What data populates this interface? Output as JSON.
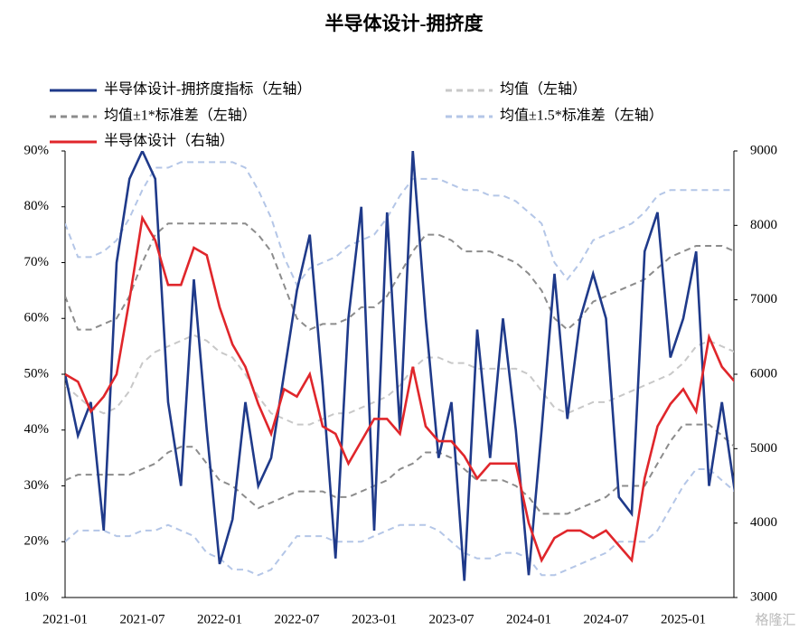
{
  "chart_data": {
    "type": "line",
    "title": "半导体设计-拥挤度",
    "x": [
      "2021-01",
      "2021-02",
      "2021-03",
      "2021-04",
      "2021-05",
      "2021-06",
      "2021-07",
      "2021-08",
      "2021-09",
      "2021-10",
      "2021-11",
      "2021-12",
      "2022-01",
      "2022-02",
      "2022-03",
      "2022-04",
      "2022-05",
      "2022-06",
      "2022-07",
      "2022-08",
      "2022-09",
      "2022-10",
      "2022-11",
      "2022-12",
      "2023-01",
      "2023-02",
      "2023-03",
      "2023-04",
      "2023-05",
      "2023-06",
      "2023-07",
      "2023-08",
      "2023-09",
      "2023-10",
      "2023-11",
      "2023-12",
      "2024-01",
      "2024-02",
      "2024-03",
      "2024-04",
      "2024-05",
      "2024-06",
      "2024-07",
      "2024-08",
      "2024-09",
      "2024-10",
      "2024-11",
      "2024-12",
      "2025-01",
      "2025-02",
      "2025-03",
      "2025-04",
      "2025-05"
    ],
    "ylim": [
      10,
      90
    ],
    "yticks": [
      {
        "value": 10,
        "label": "10%"
      },
      {
        "value": 20,
        "label": "20%"
      },
      {
        "value": 30,
        "label": "30%"
      },
      {
        "value": 40,
        "label": "40%"
      },
      {
        "value": 50,
        "label": "50%"
      },
      {
        "value": 60,
        "label": "60%"
      },
      {
        "value": 70,
        "label": "70%"
      },
      {
        "value": 80,
        "label": "80%"
      },
      {
        "value": 90,
        "label": "90%"
      }
    ],
    "y2lim": [
      3000,
      9000
    ],
    "y2ticks": [
      3000,
      4000,
      5000,
      6000,
      7000,
      8000,
      9000
    ],
    "series": [
      {
        "name": "半导体设计-拥挤度指标（左轴）",
        "color": "#1f3a8a",
        "dashed": false,
        "values": [
          50,
          39,
          45,
          22,
          70,
          85,
          90,
          85,
          45,
          30,
          67,
          40,
          16,
          24,
          45,
          30,
          35,
          50,
          65,
          75,
          48,
          17,
          60,
          80,
          22,
          79,
          40,
          90,
          60,
          35,
          45,
          13,
          58,
          35,
          60,
          40,
          14,
          40,
          68,
          42,
          60,
          68,
          60,
          28,
          25,
          72,
          79,
          53,
          60,
          72,
          30,
          45,
          29
        ]
      },
      {
        "name": "均值（左轴）",
        "color": "#c8c8c8",
        "dashed": true,
        "values": [
          48,
          46,
          44,
          43,
          44,
          47,
          52,
          54,
          55,
          56,
          57,
          56,
          54,
          53,
          50,
          46,
          43,
          42,
          41,
          41,
          42,
          43,
          43,
          44,
          45,
          46,
          48,
          51,
          53,
          53,
          52,
          52,
          51,
          51,
          51,
          51,
          50,
          47,
          44,
          43,
          44,
          45,
          45,
          46,
          47,
          48,
          49,
          50,
          52,
          55,
          56,
          55,
          54
        ]
      },
      {
        "name": "均值±1*标准差（左轴）",
        "color": "#8c8c8c",
        "dashed": true,
        "values": [
          64,
          58,
          58,
          59,
          60,
          64,
          70,
          75,
          77,
          77,
          77,
          77,
          77,
          77,
          77,
          75,
          72,
          66,
          60,
          58,
          59,
          59,
          60,
          62,
          62,
          64,
          68,
          72,
          75,
          75,
          74,
          72,
          72,
          72,
          71,
          70,
          68,
          65,
          60,
          58,
          60,
          63,
          64,
          65,
          66,
          67,
          69,
          71,
          72,
          73,
          73,
          73,
          72
        ],
        "lower": [
          31,
          32,
          32,
          32,
          32,
          32,
          33,
          34,
          36,
          37,
          37,
          34,
          31,
          30,
          28,
          26,
          27,
          28,
          29,
          29,
          29,
          28,
          28,
          29,
          30,
          31,
          33,
          34,
          36,
          36,
          35,
          33,
          31,
          31,
          31,
          30,
          28,
          25,
          25,
          25,
          26,
          27,
          28,
          30,
          30,
          30,
          34,
          38,
          41,
          41,
          41,
          39,
          37
        ]
      },
      {
        "name": "均值±1.5*标准差（左轴）",
        "color": "#b4c6e7",
        "dashed": true,
        "values": [
          77,
          71,
          71,
          72,
          74,
          78,
          83,
          87,
          87,
          88,
          88,
          88,
          88,
          88,
          87,
          83,
          78,
          71,
          66,
          69,
          70,
          71,
          73,
          74,
          75,
          78,
          82,
          85,
          85,
          85,
          84,
          83,
          83,
          82,
          82,
          81,
          79,
          77,
          70,
          67,
          70,
          74,
          75,
          76,
          77,
          79,
          82,
          83,
          83,
          83,
          83,
          83,
          83
        ],
        "lower": [
          20,
          22,
          22,
          22,
          21,
          21,
          22,
          22,
          23,
          22,
          21,
          18,
          17,
          15,
          15,
          14,
          15,
          18,
          21,
          21,
          21,
          20,
          20,
          20,
          21,
          22,
          23,
          23,
          23,
          22,
          20,
          18,
          17,
          17,
          18,
          18,
          17,
          14,
          14,
          15,
          16,
          17,
          18,
          20,
          20,
          20,
          22,
          26,
          30,
          33,
          33,
          31,
          29
        ]
      },
      {
        "name": "半导体设计（右轴）",
        "color": "#e0262b",
        "dashed": false,
        "axis": "y2",
        "values": [
          6000,
          5900,
          5500,
          5700,
          6000,
          7000,
          8100,
          7800,
          7200,
          7200,
          7700,
          7600,
          6900,
          6400,
          6100,
          5600,
          5200,
          5800,
          5700,
          6000,
          5300,
          5200,
          4800,
          5100,
          5400,
          5400,
          5200,
          6100,
          5300,
          5100,
          5100,
          4900,
          4600,
          4800,
          4800,
          4800,
          4000,
          3500,
          3800,
          3900,
          3900,
          3800,
          3900,
          3700,
          3500,
          4600,
          5300,
          5600,
          5800,
          5500,
          6500,
          6100,
          5900
        ]
      }
    ],
    "watermark": "格隆汇"
  }
}
